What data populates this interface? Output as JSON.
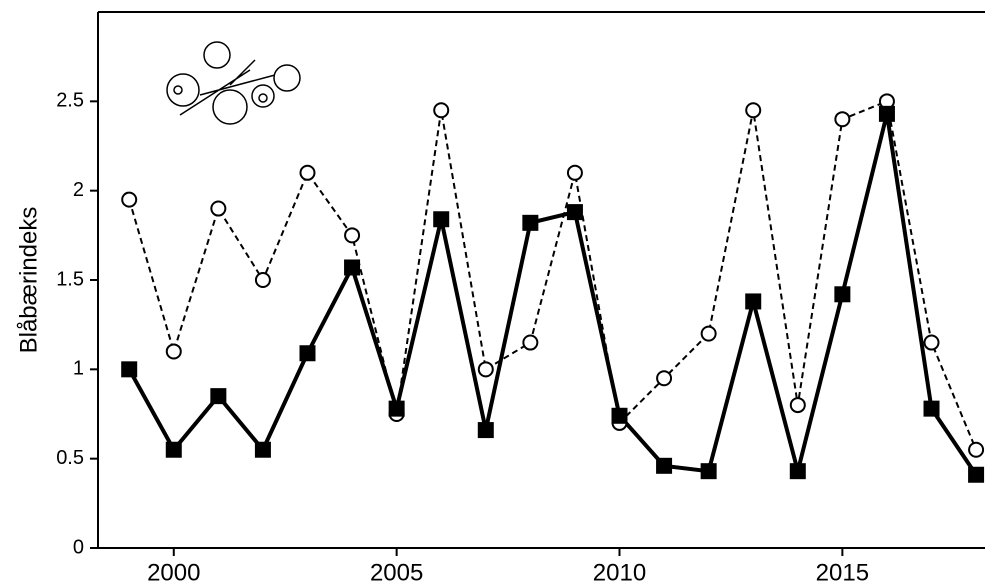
{
  "chart_data": {
    "type": "line",
    "y_label": "Blåbærindeks",
    "x": [
      1999,
      2000,
      2001,
      2002,
      2003,
      2004,
      2005,
      2006,
      2007,
      2008,
      2009,
      2010,
      2011,
      2012,
      2013,
      2014,
      2015,
      2016,
      2017,
      2018
    ],
    "series": [
      {
        "color": "#000000",
        "dashed": false,
        "marker": "square",
        "values": [
          1.0,
          0.55,
          0.85,
          0.55,
          1.09,
          1.57,
          0.78,
          1.84,
          0.66,
          1.82,
          1.88,
          0.74,
          0.46,
          0.43,
          1.38,
          0.43,
          1.42,
          2.43,
          0.78,
          0.41
        ]
      },
      {
        "color": "#000000",
        "dashed": true,
        "marker": "circle",
        "values": [
          1.95,
          1.1,
          1.9,
          1.5,
          2.1,
          1.75,
          0.75,
          2.45,
          1.0,
          1.15,
          2.1,
          0.7,
          0.95,
          1.2,
          2.45,
          0.8,
          2.4,
          2.5,
          1.15,
          0.55
        ]
      }
    ],
    "xlim": [
      1998.3,
      2018.2
    ],
    "xticks": [
      2000,
      2005,
      2010,
      2015
    ],
    "ylim": [
      0,
      3
    ],
    "yticks": [
      0,
      0.5,
      1,
      1.5,
      2,
      2.5
    ]
  }
}
